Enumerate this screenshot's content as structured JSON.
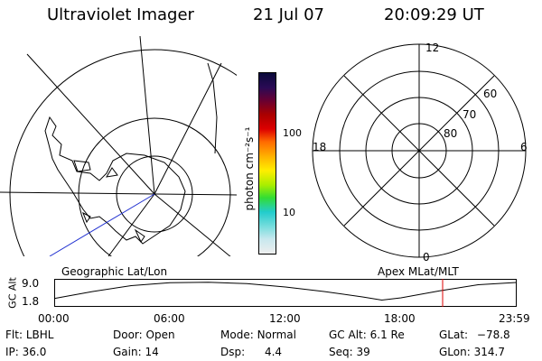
{
  "header": {
    "instrument": "Ultraviolet Imager",
    "date": "21 Jul 07",
    "time": "20:09:29 UT"
  },
  "colorbar": {
    "unit": "photon cm⁻²s⁻¹",
    "ticks": [
      "100",
      "10"
    ],
    "colors": [
      "#0a0a3a",
      "#2a0a55",
      "#660033",
      "#aa0000",
      "#dd0000",
      "#ff6a00",
      "#ffb000",
      "#ffee00",
      "#aaee00",
      "#33dd33",
      "#22cccc",
      "#77dddd",
      "#c8e8ee",
      "#eeeeee"
    ]
  },
  "left_map": {
    "label": "Geographic Lat/Lon"
  },
  "right_map": {
    "label": "Apex MLat/MLT",
    "mlt": {
      "top": "12",
      "bottom": "0",
      "left": "18",
      "right": "6"
    },
    "lat": {
      "l60": "60",
      "l70": "70",
      "l80": "80"
    }
  },
  "altitude_plot": {
    "ylabel": "GC Alt",
    "yticks": [
      "9.0",
      "1.8"
    ],
    "xticks": [
      "00:00",
      "06:00",
      "12:00",
      "18:00",
      "23:59"
    ],
    "marker_time": "20:09:29",
    "marker_color": "#dd0000",
    "curve": [
      {
        "t": 0,
        "alt": 1.9
      },
      {
        "t": 2,
        "alt": 5.0
      },
      {
        "t": 4,
        "alt": 7.6
      },
      {
        "t": 6,
        "alt": 8.9
      },
      {
        "t": 8,
        "alt": 9.1
      },
      {
        "t": 10,
        "alt": 8.5
      },
      {
        "t": 12,
        "alt": 7.0
      },
      {
        "t": 14,
        "alt": 5.0
      },
      {
        "t": 16,
        "alt": 2.6
      },
      {
        "t": 17,
        "alt": 1.2
      },
      {
        "t": 18,
        "alt": 2.2
      },
      {
        "t": 20,
        "alt": 5.3
      },
      {
        "t": 22,
        "alt": 8.0
      },
      {
        "t": 23.98,
        "alt": 9.0
      }
    ]
  },
  "status": {
    "flt_label": "Flt:",
    "flt_value": "LBHL",
    "ip_label": "IP:",
    "ip_value": "36.0",
    "door_label": "Door:",
    "door_value": "Open",
    "gain_label": "Gain:",
    "gain_value": "14",
    "mode_label": "Mode:",
    "mode_value": "Normal",
    "dsp_label": "Dsp:",
    "dsp_value": "4.4",
    "gcalt_label": "GC Alt:",
    "gcalt_value": "6.1 Re",
    "seq_label": "Seq:",
    "seq_value": "39",
    "glat_label": "GLat:",
    "glat_value": "−78.8",
    "glon_label": "GLon:",
    "glon_value": "314.7"
  }
}
